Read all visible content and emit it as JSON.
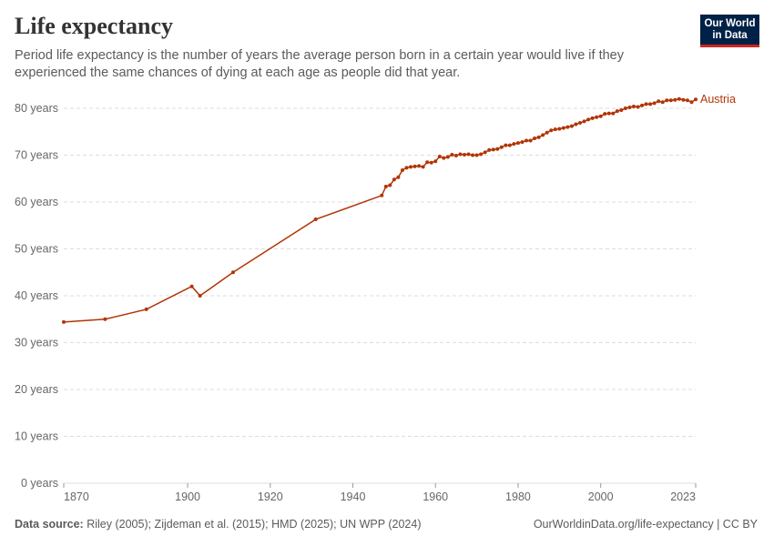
{
  "chart_data": {
    "type": "line",
    "title": "Life expectancy",
    "subtitle": "Period life expectancy is the number of years the average person born in a certain year would live if they experienced the same chances of dying at each age as people did that year.",
    "logo": [
      "Our World",
      "in Data"
    ],
    "source_label": "Data source:",
    "source": "Riley (2005); Zijdeman et al. (2015); HMD (2025); UN WPP (2024)",
    "footer_link": "OurWorldinData.org/life-expectancy | CC BY",
    "x": [
      1870,
      1880,
      1890,
      1901,
      1903,
      1911,
      1931,
      1947,
      1948,
      1949,
      1950,
      1951,
      1952,
      1953,
      1954,
      1955,
      1956,
      1957,
      1958,
      1959,
      1960,
      1961,
      1962,
      1963,
      1964,
      1965,
      1966,
      1967,
      1968,
      1969,
      1970,
      1971,
      1972,
      1973,
      1974,
      1975,
      1976,
      1977,
      1978,
      1979,
      1980,
      1981,
      1982,
      1983,
      1984,
      1985,
      1986,
      1987,
      1988,
      1989,
      1990,
      1991,
      1992,
      1993,
      1994,
      1995,
      1996,
      1997,
      1998,
      1999,
      2000,
      2001,
      2002,
      2003,
      2004,
      2005,
      2006,
      2007,
      2008,
      2009,
      2010,
      2011,
      2012,
      2013,
      2014,
      2015,
      2016,
      2017,
      2018,
      2019,
      2020,
      2021,
      2022,
      2023
    ],
    "series": [
      {
        "name": "Austria",
        "color": "#b13507",
        "values": [
          34.4,
          35.0,
          37.1,
          42.0,
          40.0,
          45.0,
          56.3,
          61.4,
          63.3,
          63.6,
          64.8,
          65.3,
          66.8,
          67.3,
          67.5,
          67.6,
          67.7,
          67.5,
          68.5,
          68.4,
          68.7,
          69.7,
          69.4,
          69.6,
          70.1,
          69.9,
          70.2,
          70.1,
          70.2,
          70.0,
          70.0,
          70.2,
          70.6,
          71.1,
          71.2,
          71.3,
          71.7,
          72.1,
          72.1,
          72.4,
          72.6,
          72.8,
          73.1,
          73.1,
          73.6,
          73.8,
          74.3,
          74.8,
          75.3,
          75.5,
          75.6,
          75.8,
          76.0,
          76.2,
          76.6,
          76.9,
          77.2,
          77.6,
          77.9,
          78.1,
          78.3,
          78.8,
          78.9,
          78.9,
          79.4,
          79.6,
          80.0,
          80.2,
          80.4,
          80.3,
          80.6,
          80.9,
          80.9,
          81.1,
          81.5,
          81.3,
          81.7,
          81.7,
          81.8,
          82.0,
          81.8,
          81.7,
          81.3,
          81.9
        ]
      }
    ],
    "xlim": [
      1870,
      2023
    ],
    "xticks": [
      1870,
      1900,
      1920,
      1940,
      1960,
      1980,
      2000,
      2023
    ],
    "ylim": [
      0,
      80
    ],
    "yticks": [
      {
        "value": 0,
        "label": "0 years"
      },
      {
        "value": 10,
        "label": "10 years"
      },
      {
        "value": 20,
        "label": "20 years"
      },
      {
        "value": 30,
        "label": "30 years"
      },
      {
        "value": 40,
        "label": "40 years"
      },
      {
        "value": 50,
        "label": "50 years"
      },
      {
        "value": 60,
        "label": "60 years"
      },
      {
        "value": 70,
        "label": "70 years"
      },
      {
        "value": 80,
        "label": "80 years"
      }
    ],
    "grid": true
  }
}
